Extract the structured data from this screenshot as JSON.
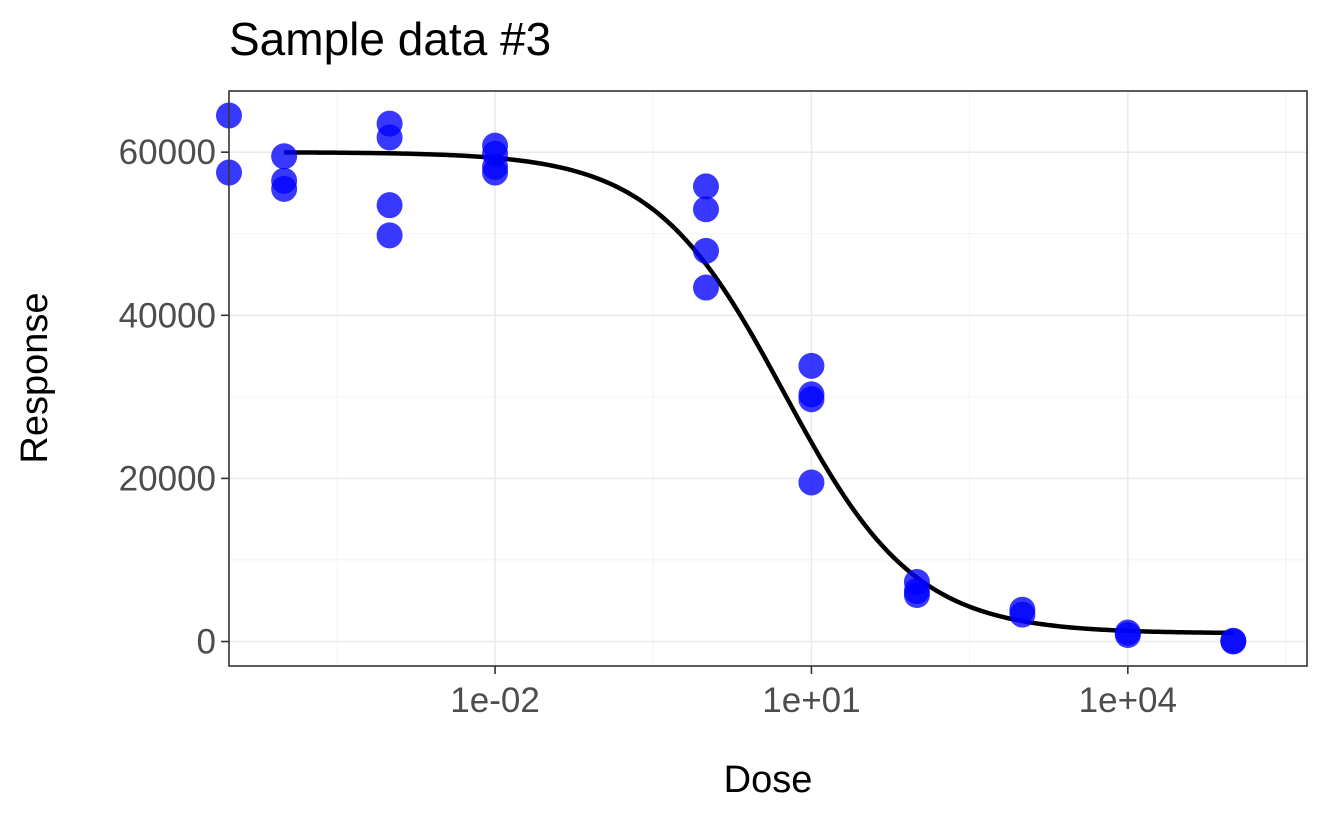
{
  "chart_data": {
    "type": "scatter",
    "title": "Sample data #3",
    "xlabel": "Dose",
    "ylabel": "Response",
    "x_scale": "log10",
    "xlim": [
      3e-05,
      500000
    ],
    "ylim": [
      -3000,
      67500
    ],
    "x_ticks": [
      {
        "value": 0.01,
        "label": "1e-02"
      },
      {
        "value": 10,
        "label": "1e+01"
      },
      {
        "value": 10000,
        "label": "1e+04"
      }
    ],
    "y_ticks": [
      {
        "value": 0,
        "label": "0"
      },
      {
        "value": 20000,
        "label": "20000"
      },
      {
        "value": 40000,
        "label": "40000"
      },
      {
        "value": 60000,
        "label": "60000"
      }
    ],
    "grid": true,
    "point_color": "#0000ff",
    "curve_color": "#000000",
    "points": [
      {
        "x": 3e-05,
        "y": 64500
      },
      {
        "x": 3e-05,
        "y": 57500
      },
      {
        "x": 0.0001,
        "y": 59500
      },
      {
        "x": 0.0001,
        "y": 56500
      },
      {
        "x": 0.0001,
        "y": 55500
      },
      {
        "x": 0.001,
        "y": 63500
      },
      {
        "x": 0.001,
        "y": 61800
      },
      {
        "x": 0.001,
        "y": 53500
      },
      {
        "x": 0.001,
        "y": 49800
      },
      {
        "x": 0.01,
        "y": 60800
      },
      {
        "x": 0.01,
        "y": 59800
      },
      {
        "x": 0.01,
        "y": 58200
      },
      {
        "x": 0.01,
        "y": 57500
      },
      {
        "x": 1,
        "y": 55800
      },
      {
        "x": 1,
        "y": 53000
      },
      {
        "x": 1,
        "y": 47900
      },
      {
        "x": 1,
        "y": 43400
      },
      {
        "x": 10,
        "y": 33800
      },
      {
        "x": 10,
        "y": 30300
      },
      {
        "x": 10,
        "y": 29700
      },
      {
        "x": 10,
        "y": 19500
      },
      {
        "x": 100,
        "y": 7300
      },
      {
        "x": 100,
        "y": 6200
      },
      {
        "x": 100,
        "y": 5700
      },
      {
        "x": 1000,
        "y": 3900
      },
      {
        "x": 1000,
        "y": 3300
      },
      {
        "x": 10000,
        "y": 1100
      },
      {
        "x": 10000,
        "y": 800
      },
      {
        "x": 100000,
        "y": 100
      },
      {
        "x": 100000,
        "y": 0
      }
    ],
    "fit_curve": {
      "model": "4-parameter log-logistic",
      "top": 60000,
      "bottom": 1000,
      "ec50": 5.5,
      "hill": 0.7,
      "x_range": [
        0.0001,
        100000
      ]
    }
  }
}
